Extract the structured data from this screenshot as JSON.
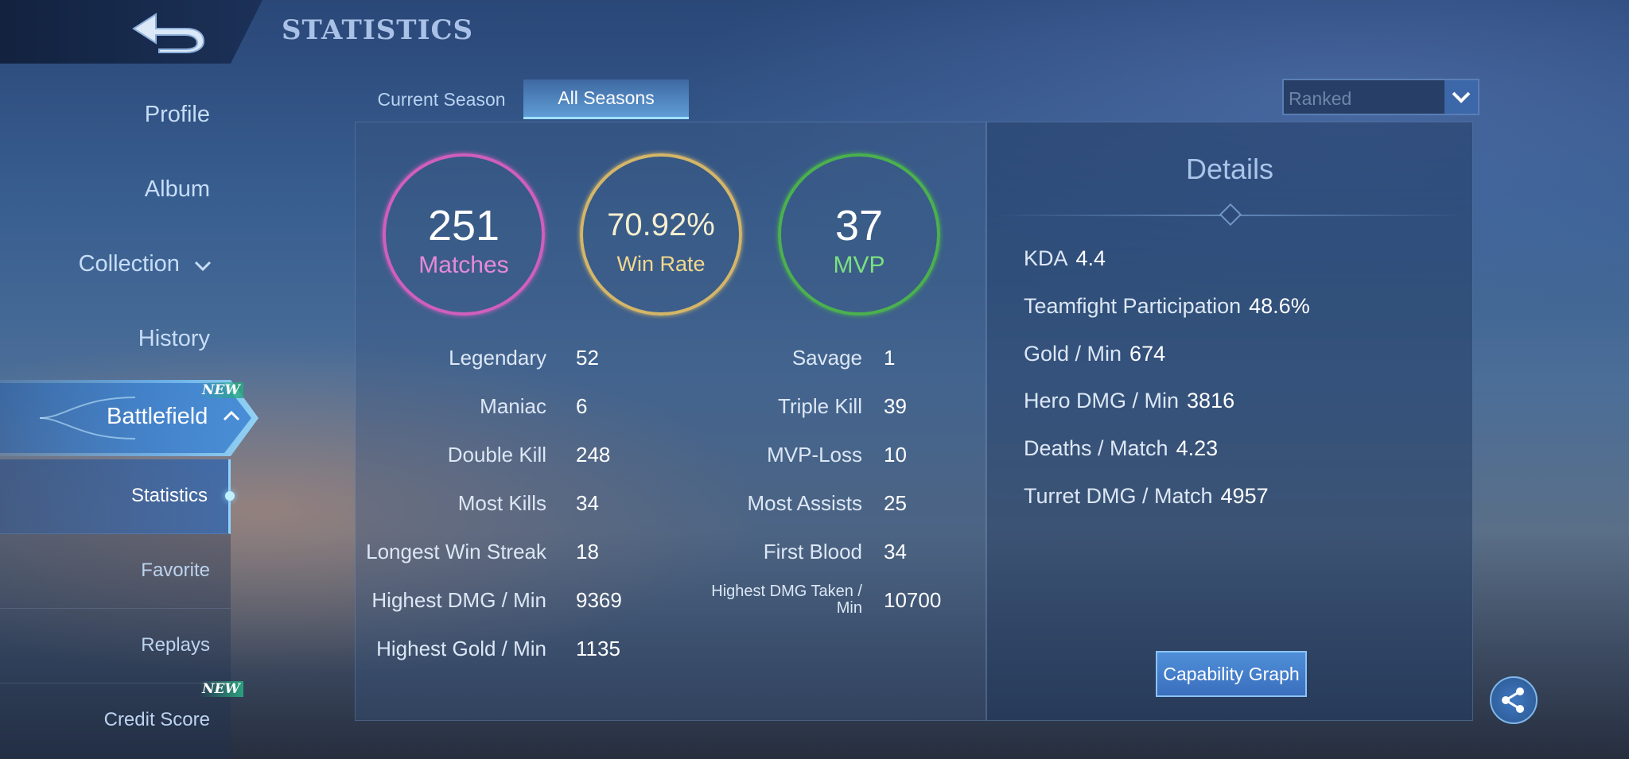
{
  "header": {
    "title": "STATISTICS"
  },
  "sidebar": {
    "items": [
      {
        "label": "Profile"
      },
      {
        "label": "Album"
      },
      {
        "label": "Collection"
      },
      {
        "label": "History"
      },
      {
        "label": "Battlefield",
        "badge": "NEW"
      }
    ],
    "subitems": [
      {
        "label": "Statistics",
        "active": true
      },
      {
        "label": "Favorite"
      },
      {
        "label": "Replays"
      },
      {
        "label": "Credit Score",
        "badge": "NEW"
      }
    ]
  },
  "tabs": [
    {
      "label": "Current Season",
      "active": false
    },
    {
      "label": "All Seasons",
      "active": true
    }
  ],
  "mode_select": {
    "value": "Ranked"
  },
  "summary": [
    {
      "value": "251",
      "label": "Matches",
      "color": "#d05fbc",
      "label_color": "#e68ad8"
    },
    {
      "value": "70.92%",
      "label": "Win Rate",
      "color": "#d4b668",
      "label_color": "#f2d98e"
    },
    {
      "value": "37",
      "label": "MVP",
      "color": "#4bb04e",
      "label_color": "#7be07f"
    }
  ],
  "stats_left": [
    {
      "label": "Legendary",
      "value": "52"
    },
    {
      "label": "Maniac",
      "value": "6"
    },
    {
      "label": "Double Kill",
      "value": "248"
    },
    {
      "label": "Most Kills",
      "value": "34"
    },
    {
      "label": "Longest Win Streak",
      "value": "18"
    },
    {
      "label": "Highest DMG / Min",
      "value": "9369"
    },
    {
      "label": "Highest Gold / Min",
      "value": "1135"
    }
  ],
  "stats_right": [
    {
      "label": "Savage",
      "value": "1"
    },
    {
      "label": "Triple Kill",
      "value": "39"
    },
    {
      "label": "MVP-Loss",
      "value": "10"
    },
    {
      "label": "Most Assists",
      "value": "25"
    },
    {
      "label": "First Blood",
      "value": "34"
    },
    {
      "label": "Highest DMG Taken / Min",
      "value": "10700"
    }
  ],
  "details": {
    "title": "Details",
    "rows": [
      {
        "label": "KDA",
        "value": "4.4"
      },
      {
        "label": "Teamfight Participation",
        "value": "48.6%"
      },
      {
        "label": "Gold / Min",
        "value": "674"
      },
      {
        "label": "Hero DMG / Min",
        "value": "3816"
      },
      {
        "label": "Deaths / Match",
        "value": "4.23"
      },
      {
        "label": "Turret DMG / Match",
        "value": "4957"
      }
    ],
    "button_label": "Capability Graph"
  }
}
